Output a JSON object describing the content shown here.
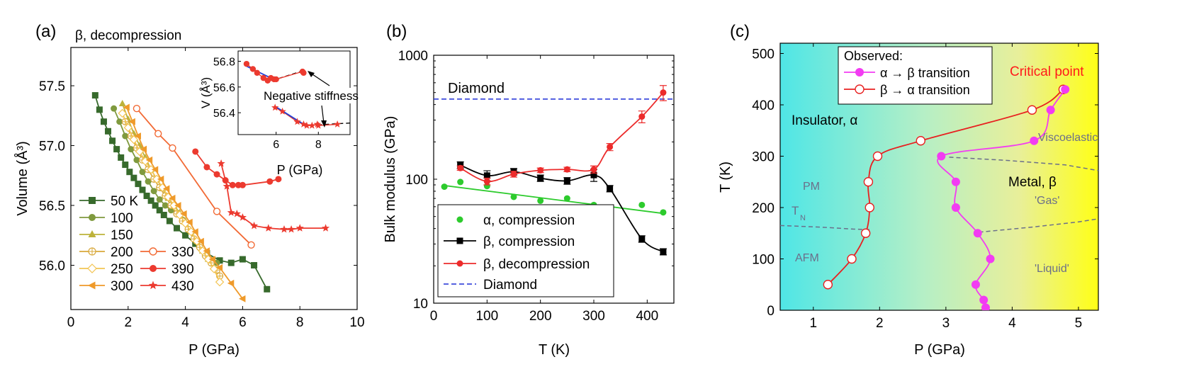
{
  "chart_data": [
    {
      "panel": "(a)",
      "type": "scatter",
      "title": "β, decompression",
      "xlabel": "P (GPa)",
      "ylabel": "Volume (Å³)",
      "xlim": [
        0,
        10
      ],
      "ylim": [
        55.63,
        57.82
      ],
      "xticks": [
        0,
        2,
        4,
        6,
        8,
        10
      ],
      "yticks": [
        56.0,
        56.5,
        57.0,
        57.5
      ],
      "series": [
        {
          "name": "50 K",
          "color": "#376A2C",
          "marker": "square",
          "x": [
            0.85,
            1.0,
            1.15,
            1.3,
            1.45,
            1.6,
            1.75,
            1.9,
            2.05,
            2.2,
            2.35,
            2.5,
            2.65,
            2.8,
            2.95,
            3.1,
            3.25,
            3.45,
            3.7,
            4.0,
            4.35,
            4.75,
            5.2,
            5.6,
            6.0,
            6.4,
            6.85
          ],
          "y": [
            57.42,
            57.3,
            57.2,
            57.12,
            57.04,
            56.97,
            56.9,
            56.84,
            56.78,
            56.73,
            56.68,
            56.63,
            56.58,
            56.54,
            56.5,
            56.46,
            56.42,
            56.37,
            56.31,
            56.25,
            56.18,
            56.1,
            56.04,
            56.02,
            56.05,
            56.0,
            55.8
          ]
        },
        {
          "name": "100",
          "color": "#7F9A3E",
          "marker": "circle",
          "x": [
            1.5,
            1.7,
            1.9,
            2.1,
            2.3,
            2.5,
            2.7,
            2.9,
            3.1,
            3.3,
            3.5,
            3.7,
            3.9,
            4.1,
            4.3,
            4.5,
            4.7,
            4.9,
            5.1
          ],
          "y": [
            57.31,
            57.2,
            57.08,
            56.97,
            56.88,
            56.78,
            56.7,
            56.62,
            56.55,
            56.5,
            56.46,
            56.43,
            56.38,
            56.3,
            56.22,
            56.15,
            56.08,
            56.04,
            56.02
          ]
        },
        {
          "name": "150",
          "color": "#BDB23A",
          "marker": "triangle",
          "x": [
            1.8,
            2.0,
            2.2,
            2.4,
            2.6,
            2.8,
            3.0,
            3.2,
            3.4,
            3.6,
            3.8,
            4.0,
            4.2,
            4.4,
            4.6,
            4.8
          ],
          "y": [
            57.35,
            57.22,
            57.1,
            57.0,
            56.9,
            56.8,
            56.72,
            56.64,
            56.56,
            56.5,
            56.44,
            56.37,
            56.28,
            56.2,
            56.12,
            56.05
          ]
        },
        {
          "name": "200",
          "color": "#D8A83A",
          "marker": "crossed-circle",
          "x": [
            1.9,
            2.1,
            2.3,
            2.5,
            2.7,
            2.9,
            3.1,
            3.3,
            3.5,
            3.7,
            3.9,
            4.1,
            4.3,
            4.5,
            4.7,
            4.9,
            5.1,
            5.2
          ],
          "y": [
            57.2,
            57.08,
            56.98,
            56.88,
            56.8,
            56.72,
            56.65,
            56.58,
            56.5,
            56.43,
            56.37,
            56.3,
            56.22,
            56.15,
            56.08,
            56.02,
            55.96,
            55.91
          ]
        },
        {
          "name": "250",
          "color": "#F3C453",
          "marker": "open-diamond",
          "x": [
            1.8,
            2.0,
            2.2,
            2.4,
            2.6,
            2.8,
            3.0,
            3.2,
            3.4,
            3.6,
            3.8,
            4.0,
            4.2,
            4.4,
            4.6,
            4.8,
            5.0,
            5.2
          ],
          "y": [
            57.27,
            57.15,
            57.05,
            56.95,
            56.87,
            56.8,
            56.72,
            56.65,
            56.57,
            56.5,
            56.42,
            56.35,
            56.28,
            56.2,
            56.12,
            56.05,
            55.97,
            55.86
          ]
        },
        {
          "name": "300",
          "color": "#EF9A2A",
          "marker": "left-triangle",
          "x": [
            1.95,
            2.15,
            2.35,
            2.55,
            2.75,
            2.95,
            3.15,
            3.35,
            3.55,
            3.75,
            3.95,
            4.15,
            4.35,
            4.55,
            4.75,
            4.95,
            5.2,
            5.6,
            6.0
          ],
          "y": [
            57.32,
            57.2,
            57.08,
            56.97,
            56.88,
            56.8,
            56.72,
            56.64,
            56.56,
            56.5,
            56.43,
            56.36,
            56.28,
            56.2,
            56.12,
            56.05,
            55.98,
            55.85,
            55.72
          ]
        },
        {
          "name": "330",
          "color": "#F26A35",
          "marker": "open-circle",
          "x": [
            2.3,
            3.05,
            3.55,
            5.1,
            6.3
          ],
          "y": [
            57.31,
            57.1,
            56.98,
            56.45,
            56.17
          ]
        },
        {
          "name": "390",
          "color": "#EC3A2F",
          "marker": "circle",
          "x": [
            4.35,
            4.75,
            5.1,
            5.4,
            5.65,
            5.85,
            6.0,
            6.95,
            7.25
          ],
          "y": [
            56.95,
            56.82,
            56.76,
            56.71,
            56.67,
            56.67,
            56.67,
            56.7,
            56.72
          ]
        },
        {
          "name": "430",
          "color": "#EC3A2F",
          "marker": "star",
          "x": [
            5.25,
            5.45,
            5.6,
            5.8,
            6.0,
            6.4,
            6.9,
            7.45,
            7.7,
            8.0,
            8.9
          ],
          "y": [
            56.85,
            56.66,
            56.44,
            56.43,
            56.4,
            56.33,
            56.31,
            56.3,
            56.3,
            56.31,
            56.31
          ]
        }
      ],
      "inset": {
        "ylabel": "V (Å³)",
        "xlabel": "P (GPa)",
        "xlim": [
          4.2,
          9.5
        ],
        "ylim": [
          56.23,
          56.88
        ],
        "xticks": [
          6,
          8
        ],
        "yticks": [
          56.4,
          56.6,
          56.8
        ],
        "annotation": "Negative stiffness",
        "upper": {
          "x": [
            4.6,
            4.9,
            5.1,
            5.4,
            5.6,
            5.75,
            5.9,
            6.0,
            7.25,
            7.3
          ],
          "y": [
            56.78,
            56.74,
            56.71,
            56.67,
            56.65,
            56.67,
            56.66,
            56.66,
            56.72,
            56.71
          ],
          "fit_x": [
            4.5,
            6.0
          ],
          "fit_y": [
            56.77,
            56.65
          ],
          "dash_x": [
            5.8,
            7.35
          ],
          "dash_y": [
            56.65,
            56.73
          ]
        },
        "lower": {
          "x": [
            5.95,
            6.3,
            7.0,
            7.3,
            7.45,
            7.7,
            7.95,
            8.0,
            8.9
          ],
          "y": [
            56.44,
            56.41,
            56.33,
            56.31,
            56.3,
            56.3,
            56.31,
            56.3,
            56.31
          ],
          "fit_x": [
            5.95,
            7.4
          ],
          "fit_y": [
            56.45,
            56.3
          ],
          "dash_x": [
            7.3,
            9.5
          ],
          "dash_y": [
            56.3,
            56.32
          ]
        }
      }
    },
    {
      "panel": "(b)",
      "type": "line",
      "xlabel": "T (K)",
      "ylabel": "Bulk modulus (GPa)",
      "xlim": [
        0,
        450
      ],
      "ylim": [
        10,
        1000
      ],
      "yscale": "log",
      "xticks": [
        0,
        100,
        200,
        300,
        400
      ],
      "yticks": [
        10,
        100,
        1000
      ],
      "diamond_label": "Diamond",
      "diamond_value": 443,
      "series": [
        {
          "name": "α, compression",
          "color": "#2DCB2D",
          "marker": "circle",
          "x": [
            20,
            50,
            100,
            150,
            200,
            250,
            300,
            330,
            390,
            430
          ],
          "y": [
            87,
            95,
            88,
            72,
            67,
            70,
            62,
            58,
            62,
            54
          ],
          "fit": [
            [
              20,
              89
            ],
            [
              430,
              53
            ]
          ]
        },
        {
          "name": "β, compression",
          "color": "#000000",
          "marker": "square",
          "x": [
            50,
            100,
            150,
            200,
            250,
            300,
            330,
            390,
            430
          ],
          "y": [
            130,
            107,
            115,
            102,
            97,
            108,
            84,
            33,
            26
          ],
          "err": [
            8,
            10,
            7,
            6,
            6,
            12,
            5,
            2,
            1.5
          ]
        },
        {
          "name": "β, decompression",
          "color": "#EC2B2B",
          "marker": "circle",
          "x": [
            50,
            100,
            150,
            200,
            250,
            300,
            330,
            390,
            430
          ],
          "y": [
            123,
            96,
            110,
            118,
            120,
            120,
            182,
            320,
            500
          ],
          "err": [
            5,
            6,
            6,
            5,
            5,
            8,
            12,
            35,
            70
          ]
        },
        {
          "name": "Diamond",
          "color": "#1F2FD6",
          "dash": true
        }
      ]
    },
    {
      "panel": "(c)",
      "type": "line",
      "xlabel": "P (GPa)",
      "ylabel": "T (K)",
      "xlim": [
        0.5,
        5.3
      ],
      "ylim": [
        0,
        520
      ],
      "xticks": [
        1,
        2,
        3,
        4,
        5
      ],
      "yticks": [
        0,
        100,
        200,
        300,
        400,
        500
      ],
      "legend_title": "Observed:",
      "critical_point_label": "Critical point",
      "regions": [
        "Insulator, α",
        "Metal, β",
        "Viscoelastic",
        "'Gas'",
        "'Liquid'",
        "PM",
        "AFM",
        "T",
        "N"
      ],
      "series": [
        {
          "name": "α → β transition",
          "color": "#F23CF2",
          "marker": "circle",
          "x": [
            4.8,
            4.58,
            4.33,
            2.93,
            3.15,
            3.15,
            3.48,
            3.67,
            3.45,
            3.57,
            3.6
          ],
          "y": [
            430,
            390,
            330,
            300,
            250,
            200,
            150,
            100,
            50,
            20,
            5
          ]
        },
        {
          "name": "β → α transition",
          "color": "#E82020",
          "marker": "open-circle",
          "x": [
            4.77,
            4.3,
            2.62,
            1.97,
            1.83,
            1.85,
            1.79,
            1.58,
            1.22
          ],
          "y": [
            430,
            390,
            330,
            300,
            250,
            200,
            150,
            100,
            50
          ]
        }
      ]
    }
  ]
}
